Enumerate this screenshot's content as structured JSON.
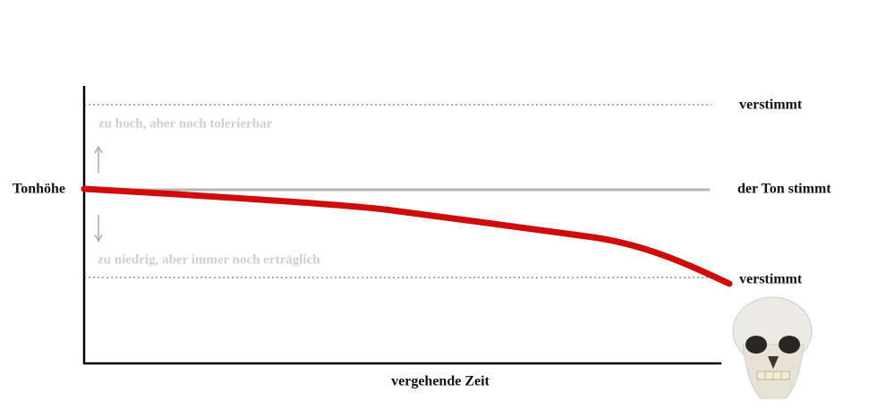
{
  "y_axis_label": "Tonhöhe",
  "x_axis_label": "vergehende Zeit",
  "levels": [
    "verstimmt",
    "der Ton stimmt",
    "verstimmt"
  ],
  "zones": [
    "zu hoch, aber noch tolerierbar",
    "zu niedrig, aber immer noch erträglich"
  ]
}
